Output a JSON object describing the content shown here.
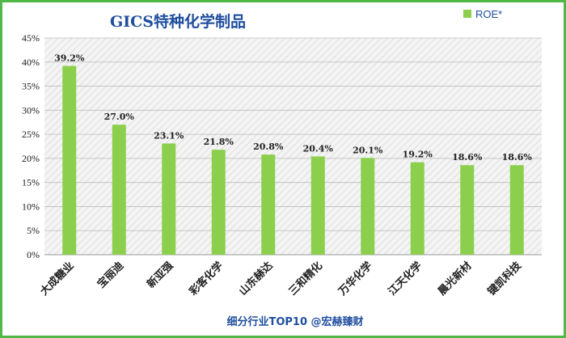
{
  "chart_data": {
    "type": "bar",
    "title": "GICS特种化学制品",
    "categories": [
      "大成糖业",
      "宝丽迪",
      "新亚强",
      "彩客化学",
      "山东赫达",
      "三和精化",
      "万华化学",
      "江天化学",
      "晨光新材",
      "键凯科技"
    ],
    "series": [
      {
        "name": "ROE*",
        "values": [
          39.2,
          27.0,
          23.1,
          21.8,
          20.8,
          20.4,
          20.1,
          19.2,
          18.6,
          18.6
        ],
        "data_labels": [
          "39.2%",
          "27.0%",
          "23.1%",
          "21.8%",
          "20.8%",
          "20.4%",
          "20.1%",
          "19.2%",
          "18.6%",
          "18.6%"
        ]
      }
    ],
    "ylim": [
      0,
      45
    ],
    "yticks": [
      "0%",
      "5%",
      "10%",
      "15%",
      "20%",
      "25%",
      "30%",
      "35%",
      "40%",
      "45%"
    ],
    "xlabel": "",
    "ylabel": "",
    "grid": true,
    "legend_position": "top-right"
  },
  "colors": {
    "bar": "#8ccf4d",
    "frame": "#4fb847",
    "title": "#1f4e9e"
  },
  "footer": "细分行业TOP10 @宏赫臻财"
}
